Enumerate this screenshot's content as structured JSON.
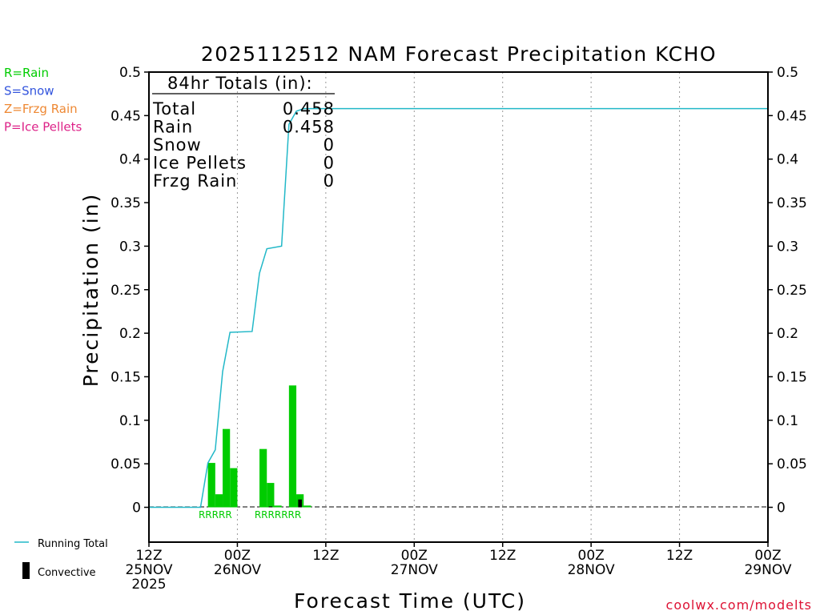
{
  "chart_data": {
    "type": "bar",
    "title": "2025112512 NAM Forecast Precipitation KCHO",
    "ylabel": "Precipitation (in)",
    "xlabel": "Forecast Time (UTC)",
    "ylim": [
      -0.04,
      0.5
    ],
    "yticks": [
      0,
      0.05,
      0.1,
      0.15,
      0.2,
      0.25,
      0.3,
      0.35,
      0.4,
      0.45,
      0.5
    ],
    "ytick_labels": [
      "0",
      "0.05",
      "0.1",
      "0.15",
      "0.2",
      "0.25",
      "0.3",
      "0.35",
      "0.4",
      "0.45",
      "0.5"
    ],
    "x_range_hours": [
      0,
      84
    ],
    "x_unit": "forecast hour",
    "grid_hours": [
      12,
      24,
      36,
      48,
      60,
      72
    ],
    "xticks": [
      {
        "hour": 0,
        "lines": [
          "12Z",
          "25NOV",
          "2025"
        ]
      },
      {
        "hour": 12,
        "lines": [
          "00Z",
          "26NOV"
        ]
      },
      {
        "hour": 24,
        "lines": [
          "12Z"
        ]
      },
      {
        "hour": 36,
        "lines": [
          "00Z",
          "27NOV"
        ]
      },
      {
        "hour": 48,
        "lines": [
          "12Z"
        ]
      },
      {
        "hour": 60,
        "lines": [
          "00Z",
          "28NOV"
        ]
      },
      {
        "hour": 72,
        "lines": [
          "12Z"
        ]
      },
      {
        "hour": 84,
        "lines": [
          "00Z",
          "29NOV"
        ]
      }
    ],
    "series": [
      {
        "name": "Rain",
        "color": "#00cc00",
        "points": [
          {
            "hour": 8.5,
            "value": 0.051
          },
          {
            "hour": 9.5,
            "value": 0.015
          },
          {
            "hour": 10.5,
            "value": 0.09
          },
          {
            "hour": 11.5,
            "value": 0.045
          },
          {
            "hour": 15.5,
            "value": 0.067
          },
          {
            "hour": 16.5,
            "value": 0.028
          },
          {
            "hour": 17.5,
            "value": 0.002
          },
          {
            "hour": 19.5,
            "value": 0.14
          },
          {
            "hour": 20.5,
            "value": 0.015
          },
          {
            "hour": 21.5,
            "value": 0.002
          }
        ]
      },
      {
        "name": "Convective",
        "color": "#000000",
        "points": [
          {
            "hour": 16.5,
            "value": 0.001
          },
          {
            "hour": 20.5,
            "value": 0.009
          }
        ]
      },
      {
        "name": "Running Total",
        "color": "#22b8c8",
        "type": "line",
        "points": [
          [
            0,
            0
          ],
          [
            7,
            0
          ],
          [
            8,
            0.051
          ],
          [
            9,
            0.066
          ],
          [
            10,
            0.156
          ],
          [
            11,
            0.201
          ],
          [
            14,
            0.202
          ],
          [
            15,
            0.269
          ],
          [
            16,
            0.297
          ],
          [
            18,
            0.3
          ],
          [
            19,
            0.44
          ],
          [
            20,
            0.455
          ],
          [
            21,
            0.458
          ],
          [
            84,
            0.458
          ]
        ]
      }
    ],
    "ptype_marks": [
      {
        "hour": 9,
        "text": "RRRRR"
      },
      {
        "hour": 17.5,
        "text": "RRRRRRR"
      }
    ],
    "totals_box": {
      "heading": "84hr Totals (in):",
      "rows": [
        {
          "label": "Total",
          "value": "0.458"
        },
        {
          "label": "Rain",
          "value": "0.458"
        },
        {
          "label": "Snow",
          "value": "0"
        },
        {
          "label": "Ice Pellets",
          "value": "0"
        },
        {
          "label": "Frzg Rain",
          "value": "0"
        }
      ]
    },
    "type_legend": [
      {
        "text": "R=Rain",
        "color": "#00cc00"
      },
      {
        "text": "S=Snow",
        "color": "#3355dd"
      },
      {
        "text": "Z=Frzg Rain",
        "color": "#ee8833"
      },
      {
        "text": "P=Ice Pellets",
        "color": "#dd2288"
      }
    ],
    "line_legend": {
      "running_total": "Running Total",
      "convective": "Convective"
    },
    "credit": "coolwx.com/modelts"
  }
}
